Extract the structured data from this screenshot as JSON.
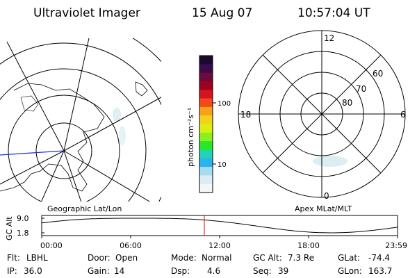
{
  "header": {
    "title": "Ultraviolet Imager",
    "date": "15 Aug 07",
    "time": "10:57:04 UT"
  },
  "left_panel": {
    "caption": "Geographic Lat/Lon",
    "projection": "geographic"
  },
  "right_panel": {
    "caption": "Apex MLat/MLT",
    "mlt_labels": {
      "top": "12",
      "left": "18",
      "right": "6",
      "bottom": "0"
    },
    "lat_labels": [
      "60",
      "70",
      "80"
    ]
  },
  "colorbar": {
    "unit_label": "photon cm⁻²s⁻¹",
    "ticks": [
      "100",
      "10"
    ],
    "colors": [
      "#1a0a2e",
      "#3b0a4a",
      "#6b0a3b",
      "#a00020",
      "#d4141e",
      "#f04a1a",
      "#f6a21a",
      "#f5d21a",
      "#d7ef12",
      "#8cf01e",
      "#28e628",
      "#21d4b4",
      "#29b4f0",
      "#a5dcf0",
      "#dcecf2",
      "#f2f7f8"
    ]
  },
  "timeline": {
    "axis_label": "GC Alt",
    "y_ticks": [
      "9.0",
      "1.8"
    ],
    "x_ticks": [
      "00:00",
      "06:00",
      "12:00",
      "18:00",
      "23:59"
    ],
    "current_time_fraction": 0.457,
    "marker_color": "#e00000"
  },
  "status": {
    "row1": [
      {
        "label": "Flt:",
        "value": "LBHL"
      },
      {
        "label": "Door:",
        "value": "Open"
      },
      {
        "label": "Mode:",
        "value": "Normal"
      },
      {
        "label": "GC Alt:",
        "value": "7.3 Re"
      },
      {
        "label": "GLat:",
        "value": "-74.4"
      }
    ],
    "row2": [
      {
        "label": "IP:",
        "value": "36.0"
      },
      {
        "label": "Gain:",
        "value": "14"
      },
      {
        "label": "Dsp:",
        "value": "4.6"
      },
      {
        "label": "Seq:",
        "value": "39"
      },
      {
        "label": "GLon:",
        "value": "163.7"
      }
    ]
  }
}
